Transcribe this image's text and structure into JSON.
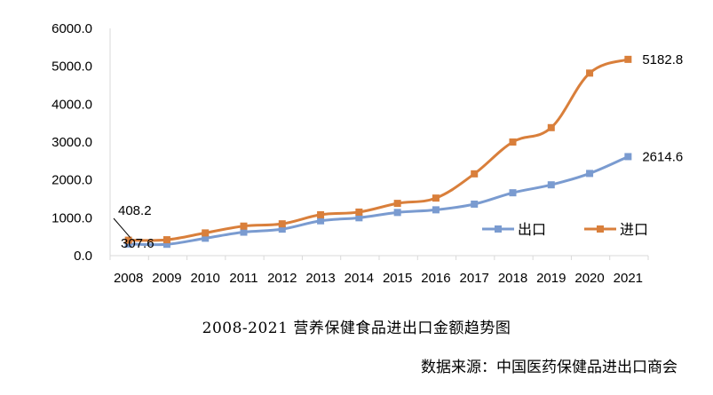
{
  "chart_data": {
    "type": "line",
    "title": "2008-2021 营养保健食品进出口金额趋势图",
    "source": "数据来源：中国医药保健品进出口商会",
    "x": [
      "2008",
      "2009",
      "2010",
      "2011",
      "2012",
      "2013",
      "2014",
      "2015",
      "2016",
      "2017",
      "2018",
      "2019",
      "2020",
      "2021"
    ],
    "ylim": [
      0,
      6000
    ],
    "yticks": [
      "0.0",
      "1000.0",
      "2000.0",
      "3000.0",
      "4000.0",
      "5000.0",
      "6000.0"
    ],
    "grid": false,
    "legend_position": "right",
    "series": [
      {
        "name": "出口",
        "color": "#7a9bd0",
        "marker": "square",
        "values": [
          307.6,
          300,
          460,
          620,
          700,
          920,
          1000,
          1140,
          1210,
          1360,
          1660,
          1870,
          2170,
          2614.6
        ]
      },
      {
        "name": "进口",
        "color": "#d97f3b",
        "marker": "square",
        "values": [
          408.2,
          420,
          600,
          780,
          840,
          1080,
          1150,
          1380,
          1520,
          2160,
          3000,
          3380,
          4820,
          5182.8
        ]
      }
    ],
    "annotations": [
      {
        "series": 0,
        "index": 0,
        "text": "307.6"
      },
      {
        "series": 1,
        "index": 0,
        "text": "408.2"
      },
      {
        "series": 0,
        "index": 13,
        "text": "2614.6"
      },
      {
        "series": 1,
        "index": 13,
        "text": "5182.8"
      }
    ]
  }
}
